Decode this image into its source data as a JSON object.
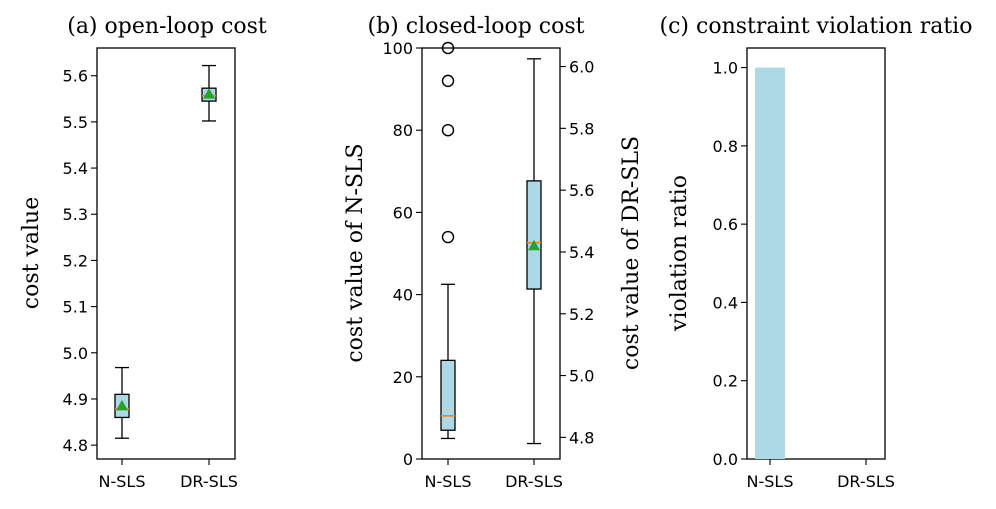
{
  "chart_data": [
    {
      "id": "a",
      "type": "box",
      "title": "(a) open-loop cost",
      "ylabel": "cost value",
      "categories": [
        "N-SLS",
        "DR-SLS"
      ],
      "ylim": [
        4.77,
        5.66
      ],
      "yticks": [
        4.8,
        4.9,
        5.0,
        5.1,
        5.2,
        5.3,
        5.4,
        5.5,
        5.6
      ],
      "ytick_labels": [
        "4.8",
        "4.9",
        "5.0",
        "5.1",
        "5.2",
        "5.3",
        "5.4",
        "5.5",
        "5.6"
      ],
      "boxes": [
        {
          "name": "N-SLS",
          "whislo": 4.815,
          "q1": 4.86,
          "med": 4.878,
          "q3": 4.91,
          "whishi": 4.968,
          "mean": 4.885,
          "fliers": []
        },
        {
          "name": "DR-SLS",
          "whislo": 5.502,
          "q1": 5.545,
          "med": 5.557,
          "q3": 5.573,
          "whishi": 5.622,
          "mean": 5.56,
          "fliers": []
        }
      ]
    },
    {
      "id": "b",
      "type": "box",
      "title": "(b) closed-loop cost",
      "ylabel": "cost value of N-SLS",
      "ylabel_right": "cost value of DR-SLS",
      "categories": [
        "N-SLS",
        "DR-SLS"
      ],
      "ylim": [
        0,
        100
      ],
      "yticks": [
        0,
        20,
        40,
        60,
        80,
        100
      ],
      "ytick_labels": [
        "0",
        "20",
        "40",
        "60",
        "80",
        "100"
      ],
      "ylim_right": [
        4.73,
        6.06
      ],
      "yticks_right": [
        4.8,
        5.0,
        5.2,
        5.4,
        5.6,
        5.8,
        6.0
      ],
      "ytick_labels_right": [
        "4.8",
        "5.0",
        "5.2",
        "5.4",
        "5.6",
        "5.8",
        "6.0"
      ],
      "boxes": [
        {
          "name": "N-SLS",
          "axis": "left",
          "whislo": 5,
          "q1": 7,
          "med": 10.5,
          "q3": 24,
          "whishi": 42.5,
          "mean": null,
          "fliers": [
            54,
            80,
            92,
            100
          ]
        },
        {
          "name": "DR-SLS",
          "axis": "right",
          "whislo": 4.78,
          "q1": 5.28,
          "med": 5.43,
          "q3": 5.63,
          "whishi": 6.025,
          "mean": 5.42,
          "fliers": []
        }
      ]
    },
    {
      "id": "c",
      "type": "bar",
      "title": "(c) constraint violation ratio",
      "ylabel": "violation ratio",
      "categories": [
        "N-SLS",
        "DR-SLS"
      ],
      "values": [
        1.0,
        0.0
      ],
      "ylim": [
        0,
        1.05
      ],
      "yticks": [
        0,
        0.2,
        0.4,
        0.6,
        0.8,
        1.0
      ],
      "ytick_labels": [
        "0.0",
        "0.2",
        "0.4",
        "0.6",
        "0.8",
        "1.0"
      ]
    }
  ],
  "colors": {
    "box_fill": "#add8e6",
    "bar_fill": "#add8e6",
    "median": "#ff7f0e",
    "mean_marker": "#2ca02c",
    "stroke": "#000000"
  }
}
